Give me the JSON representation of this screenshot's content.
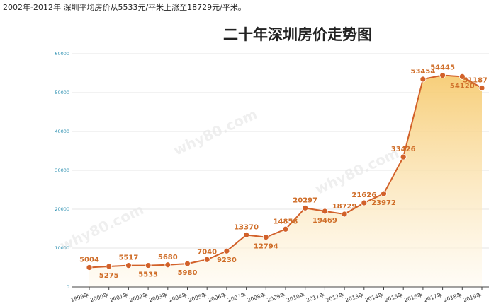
{
  "caption": "2002年-2012年 深圳平均房价从5533元/平米上涨至18729元/平米。",
  "colors": {
    "line": "#d2612a",
    "area_top": "#f6c96b",
    "area_bottom": "#fffaf0",
    "axis": "#2a8fb0"
  },
  "watermark": {
    "site": "why80.com"
  },
  "chart_data": {
    "type": "area",
    "title": "二十年深圳房价走势图",
    "xlabel": "",
    "ylabel": "",
    "ylim": [
      0,
      60000
    ],
    "yticks": [
      "0",
      "10000",
      "20000",
      "30000",
      "40000",
      "50000",
      "60000"
    ],
    "categories": [
      "1999年",
      "2000年",
      "2001年",
      "2002年",
      "2003年",
      "2004年",
      "2005年",
      "2006年",
      "2007年",
      "2008年",
      "2009年",
      "2010年",
      "2011年",
      "2012年",
      "2013年",
      "2014年",
      "2015年",
      "2016年",
      "2017年",
      "2018年",
      "2019年"
    ],
    "values": [
      5004,
      5275,
      5517,
      5533,
      5680,
      5980,
      7040,
      9230,
      13370,
      12794,
      14858,
      20297,
      19469,
      18729,
      21626,
      23972,
      33426,
      53454,
      54445,
      54120,
      51187
    ],
    "label_positions": [
      "above",
      "below",
      "above",
      "below",
      "above",
      "below",
      "above",
      "below",
      "above",
      "below",
      "above",
      "above",
      "below",
      "above",
      "above",
      "below",
      "above",
      "above",
      "above",
      "below",
      "above"
    ],
    "grid": true,
    "legend": "none"
  }
}
